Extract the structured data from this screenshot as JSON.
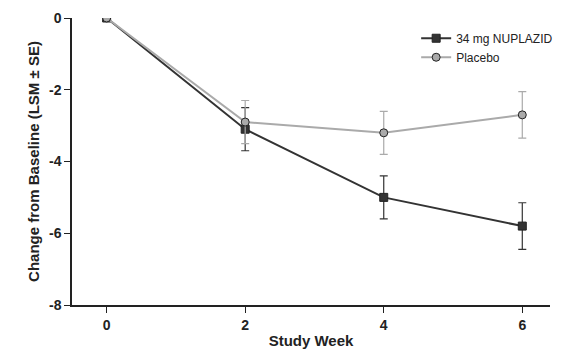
{
  "chart_data": {
    "type": "line",
    "x_label": "Study Week",
    "y_label": "Change from Baseline (LSM ± SE)",
    "x": [
      0,
      2,
      4,
      6
    ],
    "series": [
      {
        "name": "34 mg NUPLAZID",
        "color": "#333333",
        "marker": "square",
        "values": [
          0,
          -3.1,
          -5.0,
          -5.8
        ],
        "error": [
          0,
          0.6,
          0.6,
          0.65
        ]
      },
      {
        "name": "Placebo",
        "color": "#aaaaaa",
        "marker": "circle",
        "values": [
          0,
          -2.9,
          -3.2,
          -2.7
        ],
        "error": [
          0,
          0.6,
          0.6,
          0.65
        ]
      }
    ],
    "xlim": [
      -0.5,
      6.4
    ],
    "xticks": [
      0,
      2,
      4,
      6
    ],
    "ylim": [
      -8,
      0
    ],
    "yticks": [
      -8,
      -6,
      -4,
      -2,
      0
    ],
    "grid": false,
    "legend": "top right"
  }
}
